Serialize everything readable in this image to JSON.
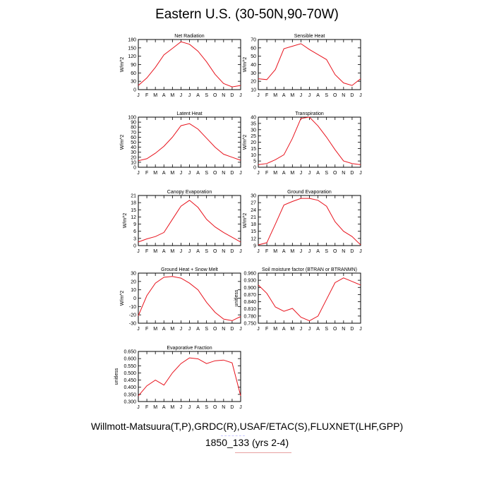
{
  "title": "Eastern U.S. (30-50N,90-70W)",
  "footer": {
    "line1": "Willmott-Matsuura(T,P),GRDC(R),USAF/ETAC(S),FLUXNET(LHF,GPP)",
    "line2": "1850_133 (yrs 2-4)"
  },
  "colors": {
    "line": "#e8141e",
    "axis": "#000000"
  },
  "chart_data": [
    {
      "type": "line",
      "title": "Net Radiation",
      "ylabel": "W/m^2",
      "categories": [
        "J",
        "F",
        "M",
        "A",
        "M",
        "J",
        "J",
        "A",
        "S",
        "O",
        "N",
        "D",
        "J"
      ],
      "yticks": [
        "0",
        "30",
        "60",
        "90",
        "120",
        "150",
        "180"
      ],
      "ylim": [
        0,
        180
      ],
      "values": [
        15,
        42,
        80,
        125,
        148,
        172,
        163,
        138,
        100,
        55,
        22,
        10,
        15
      ]
    },
    {
      "type": "line",
      "title": "Sensible Heat",
      "ylabel": "W/m^2",
      "categories": [
        "J",
        "F",
        "M",
        "A",
        "M",
        "J",
        "J",
        "A",
        "S",
        "O",
        "N",
        "D",
        "J"
      ],
      "yticks": [
        "10",
        "20",
        "30",
        "40",
        "50",
        "60",
        "70"
      ],
      "ylim": [
        10,
        70
      ],
      "values": [
        23,
        22,
        34,
        59,
        62,
        65,
        58,
        52,
        46,
        28,
        18,
        15,
        23
      ]
    },
    {
      "type": "line",
      "title": "Latent Heat",
      "ylabel": "W/m^2",
      "categories": [
        "J",
        "F",
        "M",
        "A",
        "M",
        "J",
        "J",
        "A",
        "S",
        "O",
        "N",
        "D",
        "J"
      ],
      "yticks": [
        "0",
        "10",
        "20",
        "30",
        "40",
        "50",
        "60",
        "70",
        "80",
        "90",
        "100"
      ],
      "ylim": [
        0,
        100
      ],
      "values": [
        13,
        17,
        28,
        42,
        60,
        83,
        87,
        76,
        58,
        40,
        26,
        20,
        14
      ]
    },
    {
      "type": "line",
      "title": "Transpiration",
      "ylabel": "W/m^2",
      "categories": [
        "J",
        "F",
        "M",
        "A",
        "M",
        "J",
        "J",
        "A",
        "S",
        "O",
        "N",
        "D",
        "J"
      ],
      "yticks": [
        "0",
        "5",
        "10",
        "15",
        "20",
        "25",
        "30",
        "35",
        "40"
      ],
      "ylim": [
        0,
        40
      ],
      "values": [
        2,
        3,
        6,
        10,
        23,
        39,
        40,
        33,
        24,
        14,
        5,
        3,
        2
      ]
    },
    {
      "type": "line",
      "title": "Canopy Evaporation",
      "ylabel": "W/m^2",
      "categories": [
        "J",
        "F",
        "M",
        "A",
        "M",
        "J",
        "J",
        "A",
        "S",
        "O",
        "N",
        "D",
        "J"
      ],
      "yticks": [
        "0",
        "3",
        "6",
        "9",
        "12",
        "15",
        "18",
        "21"
      ],
      "ylim": [
        0,
        21
      ],
      "values": [
        1.5,
        2.8,
        3.8,
        5.5,
        11,
        16.5,
        19,
        16,
        11,
        7.8,
        5.5,
        3.5,
        1.5
      ]
    },
    {
      "type": "line",
      "title": "Ground Evaporation",
      "ylabel": "W/m^2",
      "categories": [
        "J",
        "F",
        "M",
        "A",
        "M",
        "J",
        "J",
        "A",
        "S",
        "O",
        "N",
        "D",
        "J"
      ],
      "yticks": [
        "9",
        "12",
        "15",
        "18",
        "21",
        "24",
        "27",
        "30"
      ],
      "ylim": [
        9,
        30
      ],
      "values": [
        9.3,
        10.2,
        18,
        26,
        27.5,
        28.8,
        28.8,
        28,
        25.5,
        19,
        15,
        12.8,
        9.3
      ]
    },
    {
      "type": "line",
      "title": "Ground Heat + Snow Melt",
      "ylabel": "W/m^2",
      "categories": [
        "J",
        "F",
        "M",
        "A",
        "M",
        "J",
        "J",
        "A",
        "S",
        "O",
        "N",
        "D",
        "J"
      ],
      "yticks": [
        "-30",
        "-20",
        "-10",
        "0",
        "10",
        "20",
        "30"
      ],
      "ylim": [
        -30,
        30
      ],
      "values": [
        -21,
        3,
        18,
        25,
        26,
        24,
        18,
        10,
        -5,
        -17,
        -25,
        -27,
        -22
      ]
    },
    {
      "type": "line",
      "title": "Soil moisture factor (BTRAN or BTRANMN)",
      "ylabel": "unitless",
      "categories": [
        "J",
        "F",
        "M",
        "A",
        "M",
        "J",
        "J",
        "A",
        "S",
        "O",
        "N",
        "D",
        "J"
      ],
      "yticks": [
        "0.750",
        "0.780",
        "0.810",
        "0.840",
        "0.870",
        "0.900",
        "0.930",
        "0.960"
      ],
      "ylim": [
        0.75,
        0.96
      ],
      "values": [
        0.91,
        0.875,
        0.818,
        0.8,
        0.812,
        0.775,
        0.76,
        0.78,
        0.85,
        0.92,
        0.94,
        0.925,
        0.91
      ]
    },
    {
      "type": "line",
      "title": "Evaporative Fraction",
      "ylabel": "unitless",
      "categories": [
        "J",
        "F",
        "M",
        "A",
        "M",
        "J",
        "J",
        "A",
        "S",
        "O",
        "N",
        "D",
        "J"
      ],
      "yticks": [
        "0.300",
        "0.350",
        "0.400",
        "0.450",
        "0.500",
        "0.550",
        "0.600",
        "0.650"
      ],
      "ylim": [
        0.3,
        0.65
      ],
      "values": [
        0.34,
        0.41,
        0.45,
        0.415,
        0.5,
        0.565,
        0.605,
        0.598,
        0.565,
        0.585,
        0.59,
        0.57,
        0.34
      ]
    }
  ]
}
